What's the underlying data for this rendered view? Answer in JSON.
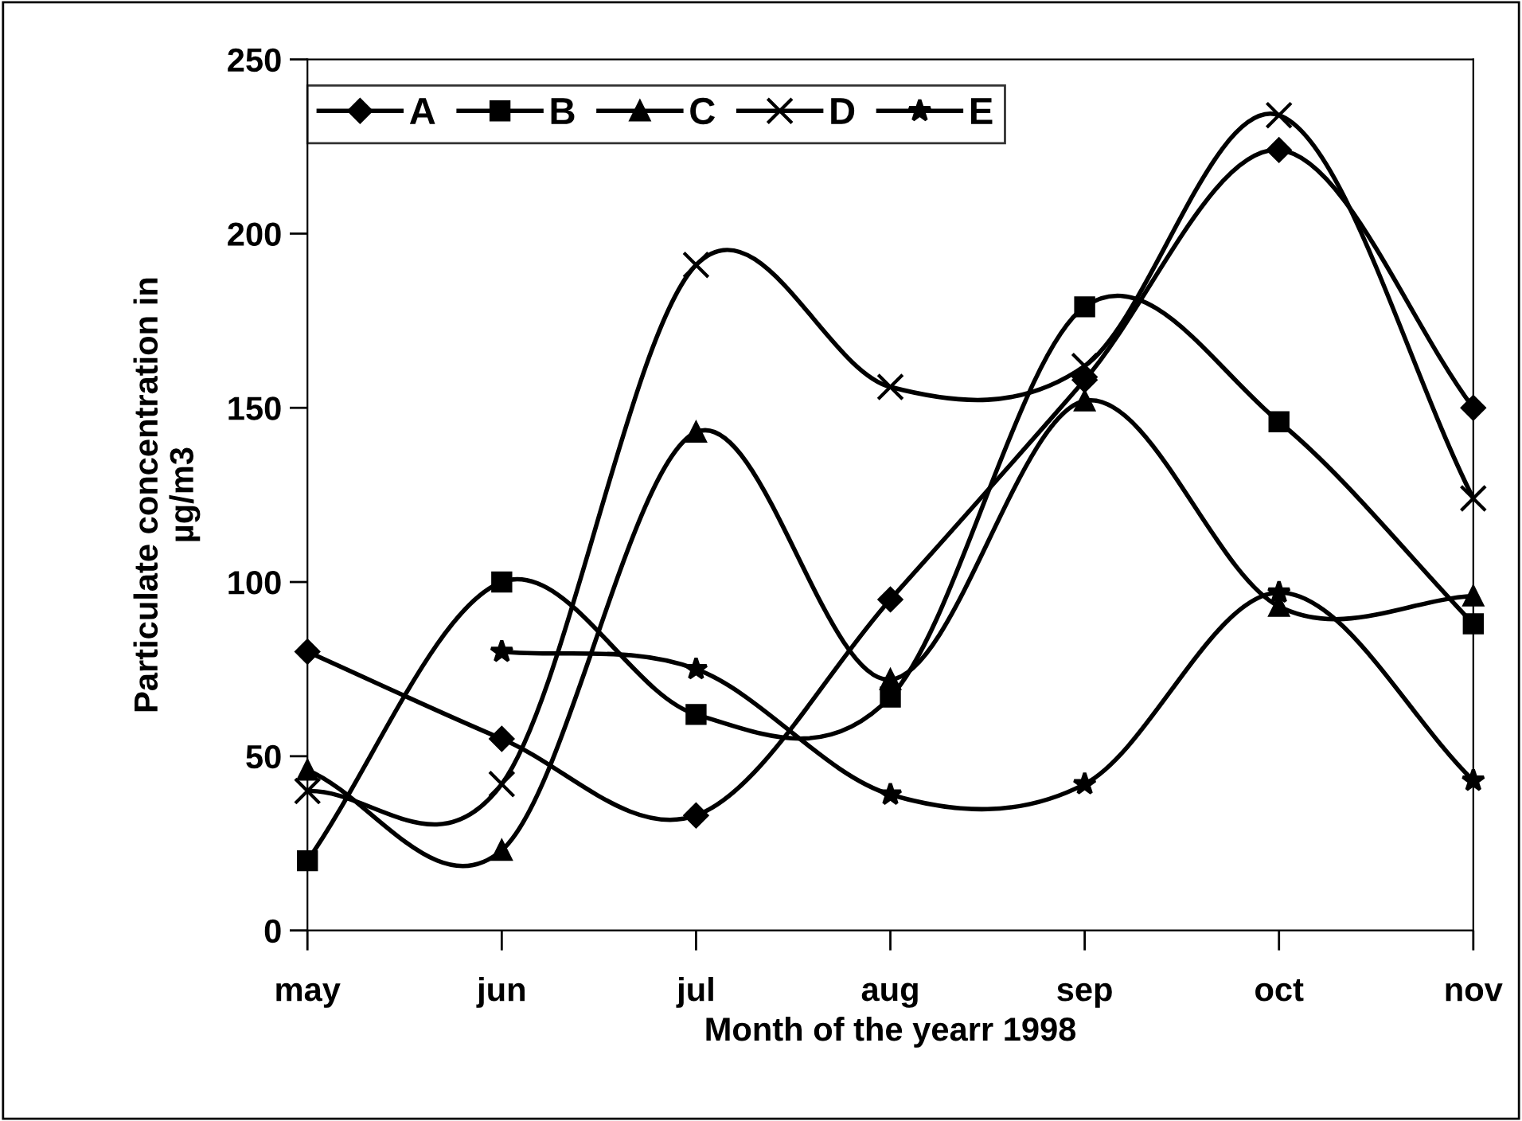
{
  "chart_data": {
    "type": "line",
    "xlabel": "Month of the yearr 1998",
    "ylabel": "Particulate concentration in\nµg/m3",
    "categories": [
      "may",
      "jun",
      "jul",
      "aug",
      "sep",
      "oct",
      "nov"
    ],
    "ylim": [
      0,
      250
    ],
    "yticks": [
      0,
      50,
      100,
      150,
      200,
      250
    ],
    "grid": false,
    "legend": "top left",
    "line_style": "solid",
    "series": [
      {
        "name": "A",
        "color": "#000000",
        "marker": "diamond",
        "values": [
          80,
          55,
          33,
          95,
          158,
          224,
          150
        ]
      },
      {
        "name": "B",
        "color": "#000000",
        "marker": "square",
        "values": [
          20,
          100,
          62,
          67,
          179,
          146,
          88
        ]
      },
      {
        "name": "C",
        "color": "#000000",
        "marker": "triangle",
        "values": [
          46,
          23,
          143,
          72,
          152,
          93,
          96
        ]
      },
      {
        "name": "D",
        "color": "#000000",
        "marker": "cross",
        "values": [
          40,
          42,
          191,
          156,
          162,
          234,
          124
        ]
      },
      {
        "name": "E",
        "color": "#000000",
        "marker": "star",
        "values": [
          null,
          80,
          75,
          39,
          42,
          97,
          43
        ]
      }
    ]
  }
}
